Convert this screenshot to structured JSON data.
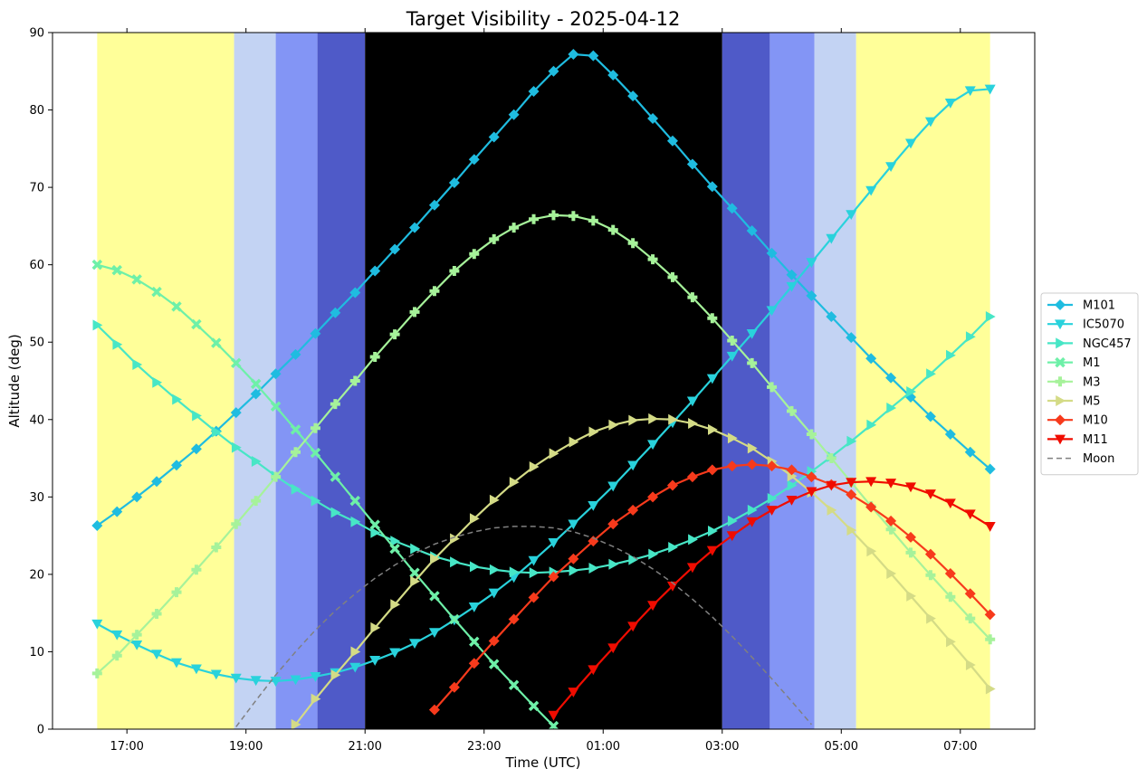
{
  "chart_data": {
    "type": "line",
    "title": "Target Visibility - 2025-04-12",
    "xlabel": "Time (UTC)",
    "ylabel": "Altitude (deg)",
    "xlim": [
      "2025-04-12T15:45",
      "2025-04-13T08:15"
    ],
    "ylim": [
      0,
      90
    ],
    "xticks": [
      {
        "time": "2025-04-12T17:00",
        "label": "17:00"
      },
      {
        "time": "2025-04-12T19:00",
        "label": "19:00"
      },
      {
        "time": "2025-04-12T21:00",
        "label": "21:00"
      },
      {
        "time": "2025-04-12T23:00",
        "label": "23:00"
      },
      {
        "time": "2025-04-13T01:00",
        "label": "01:00"
      },
      {
        "time": "2025-04-13T03:00",
        "label": "03:00"
      },
      {
        "time": "2025-04-13T05:00",
        "label": "05:00"
      },
      {
        "time": "2025-04-13T07:00",
        "label": "07:00"
      }
    ],
    "yticks": [
      0,
      10,
      20,
      30,
      40,
      50,
      60,
      70,
      80,
      90
    ],
    "grid": false,
    "legend_position": "right",
    "background_bands": [
      {
        "start": "2025-04-12T16:30",
        "end": "2025-04-12T18:48",
        "color": "#ffff99",
        "opacity": 1.0
      },
      {
        "start": "2025-04-12T18:48",
        "end": "2025-04-12T19:30",
        "color": "#c3d3f3",
        "opacity": 1.0
      },
      {
        "start": "2025-04-12T19:30",
        "end": "2025-04-12T20:12",
        "color": "#8395f5",
        "opacity": 1.0
      },
      {
        "start": "2025-04-12T20:12",
        "end": "2025-04-12T21:00",
        "color": "#4f5ac8",
        "opacity": 1.0
      },
      {
        "start": "2025-04-12T21:00",
        "end": "2025-04-13T03:00",
        "color": "#000000",
        "opacity": 1.0
      },
      {
        "start": "2025-04-13T03:00",
        "end": "2025-04-13T03:48",
        "color": "#4f5ac8",
        "opacity": 1.0
      },
      {
        "start": "2025-04-13T03:48",
        "end": "2025-04-13T04:33",
        "color": "#8395f5",
        "opacity": 1.0
      },
      {
        "start": "2025-04-13T04:33",
        "end": "2025-04-13T05:15",
        "color": "#c3d3f3",
        "opacity": 1.0
      },
      {
        "start": "2025-04-13T05:15",
        "end": "2025-04-13T07:30",
        "color": "#ffff99",
        "opacity": 1.0
      }
    ],
    "x": [
      "2025-04-12T16:30",
      "2025-04-12T16:50",
      "2025-04-12T17:10",
      "2025-04-12T17:30",
      "2025-04-12T17:50",
      "2025-04-12T18:10",
      "2025-04-12T18:30",
      "2025-04-12T18:50",
      "2025-04-12T19:10",
      "2025-04-12T19:30",
      "2025-04-12T19:50",
      "2025-04-12T20:10",
      "2025-04-12T20:30",
      "2025-04-12T20:50",
      "2025-04-12T21:10",
      "2025-04-12T21:30",
      "2025-04-12T21:50",
      "2025-04-12T22:10",
      "2025-04-12T22:30",
      "2025-04-12T22:50",
      "2025-04-12T23:10",
      "2025-04-12T23:30",
      "2025-04-12T23:50",
      "2025-04-13T00:10",
      "2025-04-13T00:30",
      "2025-04-13T00:50",
      "2025-04-13T01:10",
      "2025-04-13T01:30",
      "2025-04-13T01:50",
      "2025-04-13T02:10",
      "2025-04-13T02:30",
      "2025-04-13T02:50",
      "2025-04-13T03:10",
      "2025-04-13T03:30",
      "2025-04-13T03:50",
      "2025-04-13T04:10",
      "2025-04-13T04:30",
      "2025-04-13T04:50",
      "2025-04-13T05:10",
      "2025-04-13T05:30",
      "2025-04-13T05:50",
      "2025-04-13T06:10",
      "2025-04-13T06:30",
      "2025-04-13T06:50",
      "2025-04-13T07:10",
      "2025-04-13T07:30"
    ],
    "series": [
      {
        "name": "M101",
        "color": "#1fbce0",
        "marker": "diamond",
        "values": [
          26.3,
          28.1,
          30.0,
          32.0,
          34.1,
          36.2,
          38.5,
          40.9,
          43.3,
          45.9,
          48.4,
          51.1,
          53.8,
          56.4,
          59.2,
          62.0,
          64.8,
          67.7,
          70.6,
          73.6,
          76.5,
          79.4,
          82.4,
          85.0,
          87.2,
          87.0,
          84.5,
          81.8,
          78.9,
          76.0,
          73.0,
          70.1,
          67.3,
          64.4,
          61.5,
          58.7,
          56.0,
          53.3,
          50.6,
          47.9,
          45.4,
          42.9,
          40.4,
          38.1,
          35.8,
          33.6
        ]
      },
      {
        "name": "IC5070",
        "color": "#29d2dc",
        "marker": "triangle-down",
        "values": [
          13.6,
          12.2,
          10.9,
          9.7,
          8.6,
          7.8,
          7.1,
          6.6,
          6.3,
          6.2,
          6.4,
          6.8,
          7.3,
          8.0,
          8.9,
          9.9,
          11.1,
          12.5,
          14.1,
          15.8,
          17.6,
          19.6,
          21.8,
          24.1,
          26.5,
          28.9,
          31.4,
          34.1,
          36.8,
          39.6,
          42.4,
          45.3,
          48.2,
          51.1,
          54.1,
          57.2,
          60.3,
          63.4,
          66.5,
          69.6,
          72.7,
          75.7,
          78.5,
          80.9,
          82.5,
          82.7
        ]
      },
      {
        "name": "NGC457",
        "color": "#47e6c6",
        "marker": "triangle-right",
        "values": [
          52.2,
          49.7,
          47.1,
          44.8,
          42.6,
          40.5,
          38.4,
          36.4,
          34.6,
          32.7,
          31.0,
          29.5,
          28.0,
          26.8,
          25.4,
          24.3,
          23.3,
          22.3,
          21.6,
          21.0,
          20.6,
          20.3,
          20.2,
          20.3,
          20.5,
          20.8,
          21.3,
          21.9,
          22.6,
          23.5,
          24.5,
          25.6,
          26.9,
          28.3,
          29.8,
          31.5,
          33.3,
          35.2,
          37.2,
          39.3,
          41.5,
          43.6,
          45.9,
          48.3,
          50.7,
          53.3
        ]
      },
      {
        "name": "M1",
        "color": "#6ef0a8",
        "marker": "x",
        "values": [
          60.0,
          59.3,
          58.1,
          56.5,
          54.6,
          52.3,
          49.9,
          47.3,
          44.6,
          41.7,
          38.7,
          35.7,
          32.6,
          29.5,
          26.4,
          23.3,
          20.2,
          17.2,
          14.2,
          11.3,
          8.4,
          5.7,
          3.0,
          0.4,
          null,
          null,
          null,
          null,
          null,
          null,
          null,
          null,
          null,
          null,
          null,
          null,
          null,
          null,
          null,
          null,
          null,
          null,
          null,
          null,
          null,
          null
        ]
      },
      {
        "name": "M3",
        "color": "#a6f29a",
        "marker": "plus",
        "values": [
          7.2,
          9.5,
          12.2,
          14.9,
          17.7,
          20.6,
          23.5,
          26.5,
          29.5,
          32.6,
          35.8,
          38.9,
          42.0,
          45.0,
          48.1,
          51.0,
          53.9,
          56.6,
          59.2,
          61.4,
          63.3,
          64.8,
          65.9,
          66.4,
          66.3,
          65.7,
          64.5,
          62.8,
          60.7,
          58.4,
          55.8,
          53.1,
          50.2,
          47.3,
          44.2,
          41.1,
          38.1,
          35.0,
          31.9,
          28.8,
          25.8,
          22.8,
          19.9,
          17.1,
          14.3,
          11.6
        ]
      },
      {
        "name": "M5",
        "color": "#d4db86",
        "marker": "triangle-right",
        "values": [
          null,
          null,
          null,
          null,
          null,
          null,
          null,
          null,
          null,
          null,
          0.6,
          3.9,
          7.0,
          10.0,
          13.1,
          16.1,
          19.1,
          22.0,
          24.6,
          27.2,
          29.6,
          31.9,
          33.9,
          35.6,
          37.1,
          38.4,
          39.3,
          39.9,
          40.1,
          40.0,
          39.5,
          38.7,
          37.6,
          36.3,
          34.6,
          32.7,
          30.6,
          28.3,
          25.7,
          23.0,
          20.1,
          17.2,
          14.3,
          11.3,
          8.3,
          5.2
        ]
      },
      {
        "name": "M10",
        "color": "#f73a1c",
        "marker": "diamond",
        "values": [
          null,
          null,
          null,
          null,
          null,
          null,
          null,
          null,
          null,
          null,
          null,
          null,
          null,
          null,
          null,
          null,
          null,
          2.5,
          5.4,
          8.5,
          11.4,
          14.2,
          17.0,
          19.7,
          22.0,
          24.3,
          26.5,
          28.3,
          30.0,
          31.5,
          32.6,
          33.5,
          34.0,
          34.2,
          34.0,
          33.5,
          32.6,
          31.6,
          30.3,
          28.7,
          26.9,
          24.8,
          22.6,
          20.1,
          17.5,
          14.8
        ]
      },
      {
        "name": "M11",
        "color": "#f00c00",
        "marker": "triangle-down",
        "values": [
          null,
          null,
          null,
          null,
          null,
          null,
          null,
          null,
          null,
          null,
          null,
          null,
          null,
          null,
          null,
          null,
          null,
          null,
          null,
          null,
          null,
          null,
          null,
          1.8,
          4.8,
          7.7,
          10.5,
          13.3,
          16.0,
          18.5,
          20.9,
          23.1,
          25.0,
          26.8,
          28.3,
          29.6,
          30.7,
          31.5,
          31.9,
          32.0,
          31.8,
          31.3,
          30.4,
          29.2,
          27.8,
          26.2
        ]
      },
      {
        "name": "Moon",
        "color": "#808080",
        "style": "dashed",
        "marker": "none",
        "values": [
          null,
          null,
          null,
          null,
          null,
          null,
          null,
          0.3,
          3.7,
          7.0,
          10.0,
          12.8,
          15.3,
          17.5,
          19.5,
          21.2,
          22.7,
          23.9,
          24.8,
          25.5,
          26.0,
          26.2,
          26.2,
          26.0,
          25.5,
          24.7,
          23.6,
          22.3,
          20.7,
          18.9,
          16.8,
          14.5,
          12.0,
          9.3,
          6.5,
          3.6,
          0.6,
          null,
          null,
          null,
          null,
          null,
          null,
          null,
          null,
          null
        ]
      }
    ]
  }
}
